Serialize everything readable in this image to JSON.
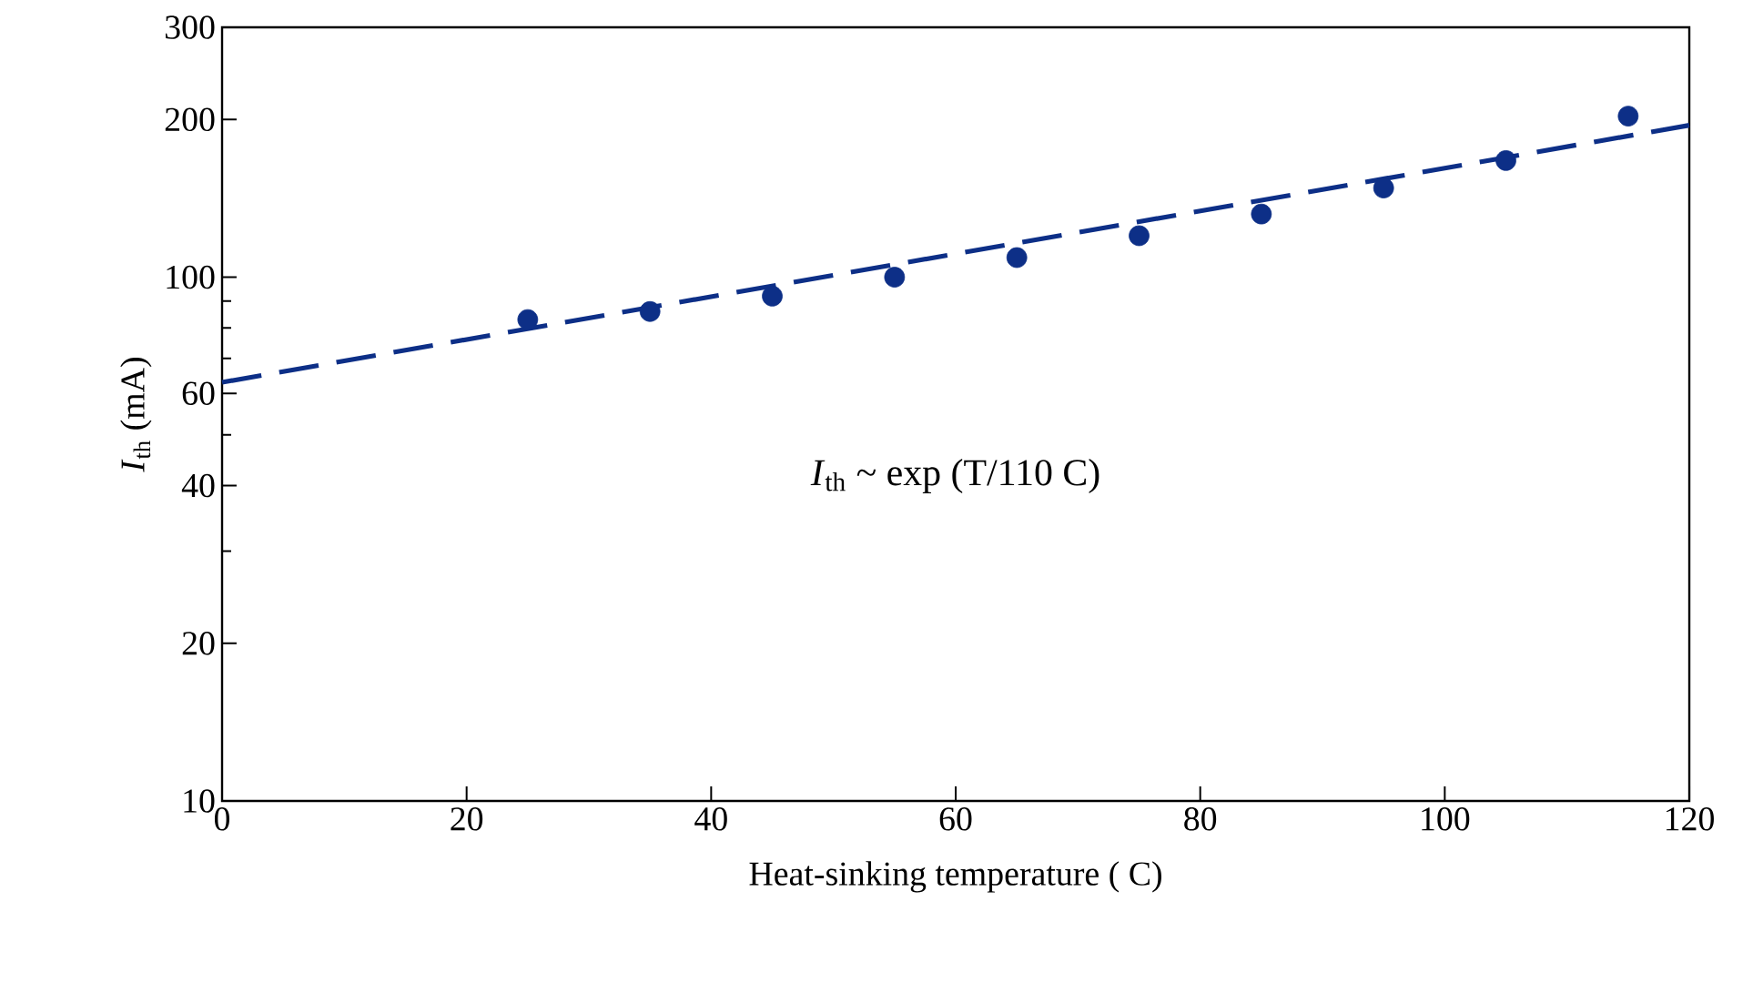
{
  "chart_data": {
    "type": "scatter",
    "xlabel": "Heat-sinking temperature ( C)",
    "ylabel": "*I*$_{th}$ (mA)",
    "annotations": [
      "*I*$_{th}$ ~ exp (T/110 C)"
    ],
    "log": "y",
    "grid": false,
    "legend": false,
    "xlim": [
      0,
      120
    ],
    "xticks": [
      0,
      20,
      40,
      60,
      80,
      100,
      120
    ],
    "ylim": [
      10,
      300
    ],
    "yticks": [
      10,
      20,
      {
        "value": 30,
        "label": null
      },
      40,
      {
        "value": 50,
        "label": null
      },
      60,
      {
        "value": 70,
        "label": null
      },
      {
        "value": 80,
        "label": null
      },
      {
        "value": 90,
        "label": null
      },
      100,
      200,
      300
    ],
    "series": [
      {
        "marker": "circle",
        "color": "#0d2f87",
        "x": [
          25,
          35,
          45,
          55,
          65,
          75,
          85,
          95,
          105,
          115
        ],
        "values": [
          83,
          86,
          92,
          100,
          109,
          120,
          132,
          148,
          167,
          203
        ]
      },
      {
        "type": "line",
        "marker": "none",
        "line_style": "dashed",
        "color": "#0d2f87",
        "x": [
          0,
          120
        ],
        "values": [
          63,
          195
        ]
      }
    ]
  }
}
